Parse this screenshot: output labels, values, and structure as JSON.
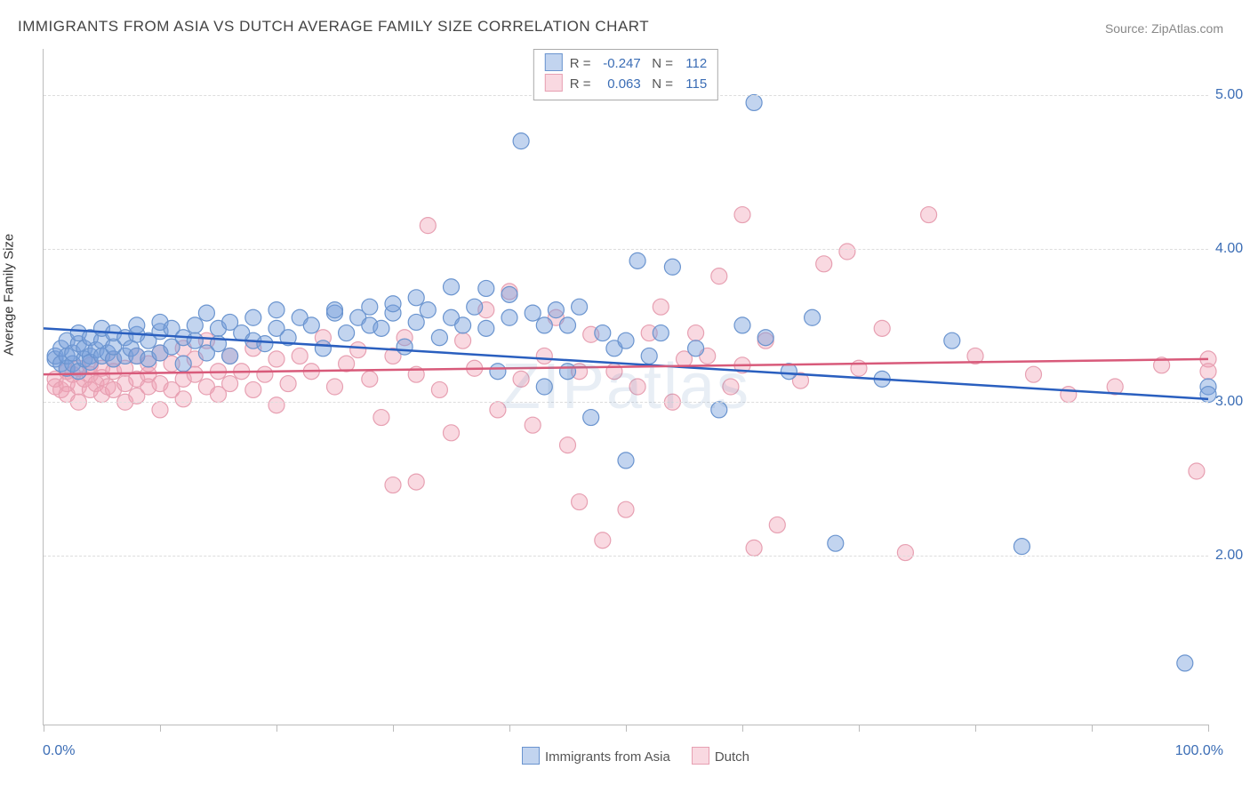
{
  "title": "IMMIGRANTS FROM ASIA VS DUTCH AVERAGE FAMILY SIZE CORRELATION CHART",
  "source": "Source: ZipAtlas.com",
  "watermark": "ZIPatlas",
  "ylabel": "Average Family Size",
  "xaxis": {
    "min_label": "0.0%",
    "max_label": "100.0%",
    "xmin": 0,
    "xmax": 100,
    "ticks": [
      0,
      10,
      20,
      30,
      40,
      50,
      60,
      70,
      80,
      90,
      100
    ]
  },
  "yaxis": {
    "ymin": 0.9,
    "ymax": 5.3,
    "ticks": [
      2.0,
      3.0,
      4.0,
      5.0
    ],
    "tick_labels": [
      "2.00",
      "3.00",
      "4.00",
      "5.00"
    ]
  },
  "series": [
    {
      "key": "asia",
      "label": "Immigrants from Asia",
      "fill": "rgba(120,160,220,0.45)",
      "stroke": "#6a94cf",
      "line_color": "#2a5fbf",
      "line_width": 2.5,
      "marker_r": 9,
      "R_label": "R = ",
      "R": "-0.247",
      "N_label": "N = ",
      "N": "112",
      "trend": {
        "x1": 0,
        "y1": 3.48,
        "x2": 100,
        "y2": 3.02
      }
    },
    {
      "key": "dutch",
      "label": "Dutch",
      "fill": "rgba(240,160,180,0.40)",
      "stroke": "#e7a0b2",
      "line_color": "#d85a7a",
      "line_width": 2.5,
      "marker_r": 9,
      "R_label": "R = ",
      "R": "0.063",
      "N_label": "N = ",
      "N": "115",
      "trend": {
        "x1": 0,
        "y1": 3.18,
        "x2": 100,
        "y2": 3.28
      }
    }
  ],
  "points": {
    "asia": [
      [
        1,
        3.28
      ],
      [
        1,
        3.3
      ],
      [
        1.5,
        3.25
      ],
      [
        1.5,
        3.35
      ],
      [
        2,
        3.22
      ],
      [
        2,
        3.3
      ],
      [
        2,
        3.4
      ],
      [
        2.5,
        3.25
      ],
      [
        2.5,
        3.32
      ],
      [
        3,
        3.2
      ],
      [
        3,
        3.38
      ],
      [
        3,
        3.45
      ],
      [
        3.5,
        3.28
      ],
      [
        3.5,
        3.35
      ],
      [
        4,
        3.3
      ],
      [
        4,
        3.26
      ],
      [
        4,
        3.42
      ],
      [
        4.5,
        3.34
      ],
      [
        5,
        3.3
      ],
      [
        5,
        3.4
      ],
      [
        5,
        3.48
      ],
      [
        5.5,
        3.32
      ],
      [
        6,
        3.28
      ],
      [
        6,
        3.36
      ],
      [
        6,
        3.45
      ],
      [
        7,
        3.3
      ],
      [
        7,
        3.42
      ],
      [
        7.5,
        3.35
      ],
      [
        8,
        3.3
      ],
      [
        8,
        3.44
      ],
      [
        8,
        3.5
      ],
      [
        9,
        3.28
      ],
      [
        9,
        3.4
      ],
      [
        10,
        3.32
      ],
      [
        10,
        3.46
      ],
      [
        10,
        3.52
      ],
      [
        11,
        3.36
      ],
      [
        11,
        3.48
      ],
      [
        12,
        3.25
      ],
      [
        12,
        3.42
      ],
      [
        13,
        3.4
      ],
      [
        13,
        3.5
      ],
      [
        14,
        3.32
      ],
      [
        14,
        3.58
      ],
      [
        15,
        3.38
      ],
      [
        15,
        3.48
      ],
      [
        16,
        3.3
      ],
      [
        16,
        3.52
      ],
      [
        17,
        3.45
      ],
      [
        18,
        3.4
      ],
      [
        18,
        3.55
      ],
      [
        19,
        3.38
      ],
      [
        20,
        3.48
      ],
      [
        20,
        3.6
      ],
      [
        21,
        3.42
      ],
      [
        22,
        3.55
      ],
      [
        23,
        3.5
      ],
      [
        24,
        3.35
      ],
      [
        25,
        3.58
      ],
      [
        25,
        3.6
      ],
      [
        26,
        3.45
      ],
      [
        27,
        3.55
      ],
      [
        28,
        3.62
      ],
      [
        28,
        3.5
      ],
      [
        29,
        3.48
      ],
      [
        30,
        3.58
      ],
      [
        30,
        3.64
      ],
      [
        31,
        3.36
      ],
      [
        32,
        3.52
      ],
      [
        32,
        3.68
      ],
      [
        33,
        3.6
      ],
      [
        34,
        3.42
      ],
      [
        35,
        3.55
      ],
      [
        35,
        3.75
      ],
      [
        36,
        3.5
      ],
      [
        37,
        3.62
      ],
      [
        38,
        3.48
      ],
      [
        38,
        3.74
      ],
      [
        39,
        3.2
      ],
      [
        40,
        3.55
      ],
      [
        40,
        3.7
      ],
      [
        41,
        4.7
      ],
      [
        42,
        3.58
      ],
      [
        43,
        3.5
      ],
      [
        43,
        3.1
      ],
      [
        44,
        3.6
      ],
      [
        45,
        3.5
      ],
      [
        45,
        3.2
      ],
      [
        46,
        3.62
      ],
      [
        47,
        2.9
      ],
      [
        48,
        3.45
      ],
      [
        49,
        3.35
      ],
      [
        50,
        3.4
      ],
      [
        50,
        2.62
      ],
      [
        51,
        3.92
      ],
      [
        52,
        3.3
      ],
      [
        53,
        3.45
      ],
      [
        54,
        3.88
      ],
      [
        56,
        3.35
      ],
      [
        58,
        2.95
      ],
      [
        60,
        3.5
      ],
      [
        61,
        4.95
      ],
      [
        62,
        3.42
      ],
      [
        64,
        3.2
      ],
      [
        66,
        3.55
      ],
      [
        68,
        2.08
      ],
      [
        72,
        3.15
      ],
      [
        78,
        3.4
      ],
      [
        84,
        2.06
      ],
      [
        98,
        1.3
      ],
      [
        100,
        3.1
      ],
      [
        100,
        3.05
      ]
    ],
    "dutch": [
      [
        1,
        3.1
      ],
      [
        1,
        3.15
      ],
      [
        1.5,
        3.08
      ],
      [
        2,
        3.12
      ],
      [
        2,
        3.2
      ],
      [
        2,
        3.05
      ],
      [
        2.5,
        3.18
      ],
      [
        3,
        3.1
      ],
      [
        3,
        3.22
      ],
      [
        3,
        3.0
      ],
      [
        3.5,
        3.15
      ],
      [
        4,
        3.08
      ],
      [
        4,
        3.24
      ],
      [
        4,
        3.18
      ],
      [
        4.5,
        3.12
      ],
      [
        5,
        3.05
      ],
      [
        5,
        3.22
      ],
      [
        5,
        3.16
      ],
      [
        5.5,
        3.1
      ],
      [
        6,
        3.2
      ],
      [
        6,
        3.08
      ],
      [
        6,
        3.28
      ],
      [
        7,
        3.12
      ],
      [
        7,
        3.22
      ],
      [
        7,
        3.0
      ],
      [
        8,
        3.15
      ],
      [
        8,
        3.3
      ],
      [
        8,
        3.04
      ],
      [
        9,
        3.1
      ],
      [
        9,
        3.25
      ],
      [
        9,
        3.18
      ],
      [
        10,
        3.12
      ],
      [
        10,
        3.32
      ],
      [
        10,
        2.95
      ],
      [
        11,
        3.08
      ],
      [
        11,
        3.25
      ],
      [
        12,
        3.15
      ],
      [
        12,
        3.35
      ],
      [
        12,
        3.02
      ],
      [
        13,
        3.18
      ],
      [
        13,
        3.28
      ],
      [
        14,
        3.1
      ],
      [
        14,
        3.4
      ],
      [
        15,
        3.2
      ],
      [
        15,
        3.05
      ],
      [
        16,
        3.3
      ],
      [
        16,
        3.12
      ],
      [
        17,
        3.2
      ],
      [
        18,
        3.35
      ],
      [
        18,
        3.08
      ],
      [
        19,
        3.18
      ],
      [
        20,
        3.28
      ],
      [
        20,
        2.98
      ],
      [
        21,
        3.12
      ],
      [
        22,
        3.3
      ],
      [
        23,
        3.2
      ],
      [
        24,
        3.42
      ],
      [
        25,
        3.1
      ],
      [
        26,
        3.25
      ],
      [
        27,
        3.34
      ],
      [
        28,
        3.15
      ],
      [
        29,
        2.9
      ],
      [
        30,
        3.3
      ],
      [
        30,
        2.46
      ],
      [
        31,
        3.42
      ],
      [
        32,
        3.18
      ],
      [
        32,
        2.48
      ],
      [
        33,
        4.15
      ],
      [
        34,
        3.08
      ],
      [
        35,
        2.8
      ],
      [
        36,
        3.4
      ],
      [
        37,
        3.22
      ],
      [
        38,
        3.6
      ],
      [
        39,
        2.95
      ],
      [
        40,
        3.72
      ],
      [
        41,
        3.15
      ],
      [
        42,
        2.85
      ],
      [
        43,
        3.3
      ],
      [
        44,
        3.55
      ],
      [
        45,
        2.72
      ],
      [
        46,
        3.2
      ],
      [
        46,
        2.35
      ],
      [
        47,
        3.44
      ],
      [
        48,
        2.1
      ],
      [
        49,
        3.2
      ],
      [
        50,
        2.3
      ],
      [
        51,
        3.1
      ],
      [
        52,
        3.45
      ],
      [
        53,
        3.62
      ],
      [
        54,
        3.0
      ],
      [
        55,
        3.28
      ],
      [
        56,
        3.45
      ],
      [
        57,
        3.3
      ],
      [
        58,
        3.82
      ],
      [
        59,
        3.1
      ],
      [
        60,
        3.24
      ],
      [
        60,
        4.22
      ],
      [
        61,
        2.05
      ],
      [
        62,
        3.4
      ],
      [
        63,
        2.2
      ],
      [
        65,
        3.14
      ],
      [
        67,
        3.9
      ],
      [
        69,
        3.98
      ],
      [
        70,
        3.22
      ],
      [
        72,
        3.48
      ],
      [
        74,
        2.02
      ],
      [
        76,
        4.22
      ],
      [
        80,
        3.3
      ],
      [
        85,
        3.18
      ],
      [
        88,
        3.05
      ],
      [
        92,
        3.1
      ],
      [
        96,
        3.24
      ],
      [
        99,
        2.55
      ],
      [
        100,
        3.28
      ],
      [
        100,
        3.2
      ]
    ]
  },
  "style": {
    "background": "#ffffff",
    "grid_color": "#dddddd",
    "axis_color": "#bbbbbb",
    "tick_label_color": "#3b6db5",
    "title_color": "#444444",
    "title_fontsize": 17,
    "ytick_fontsize": 16,
    "label_fontsize": 15
  }
}
